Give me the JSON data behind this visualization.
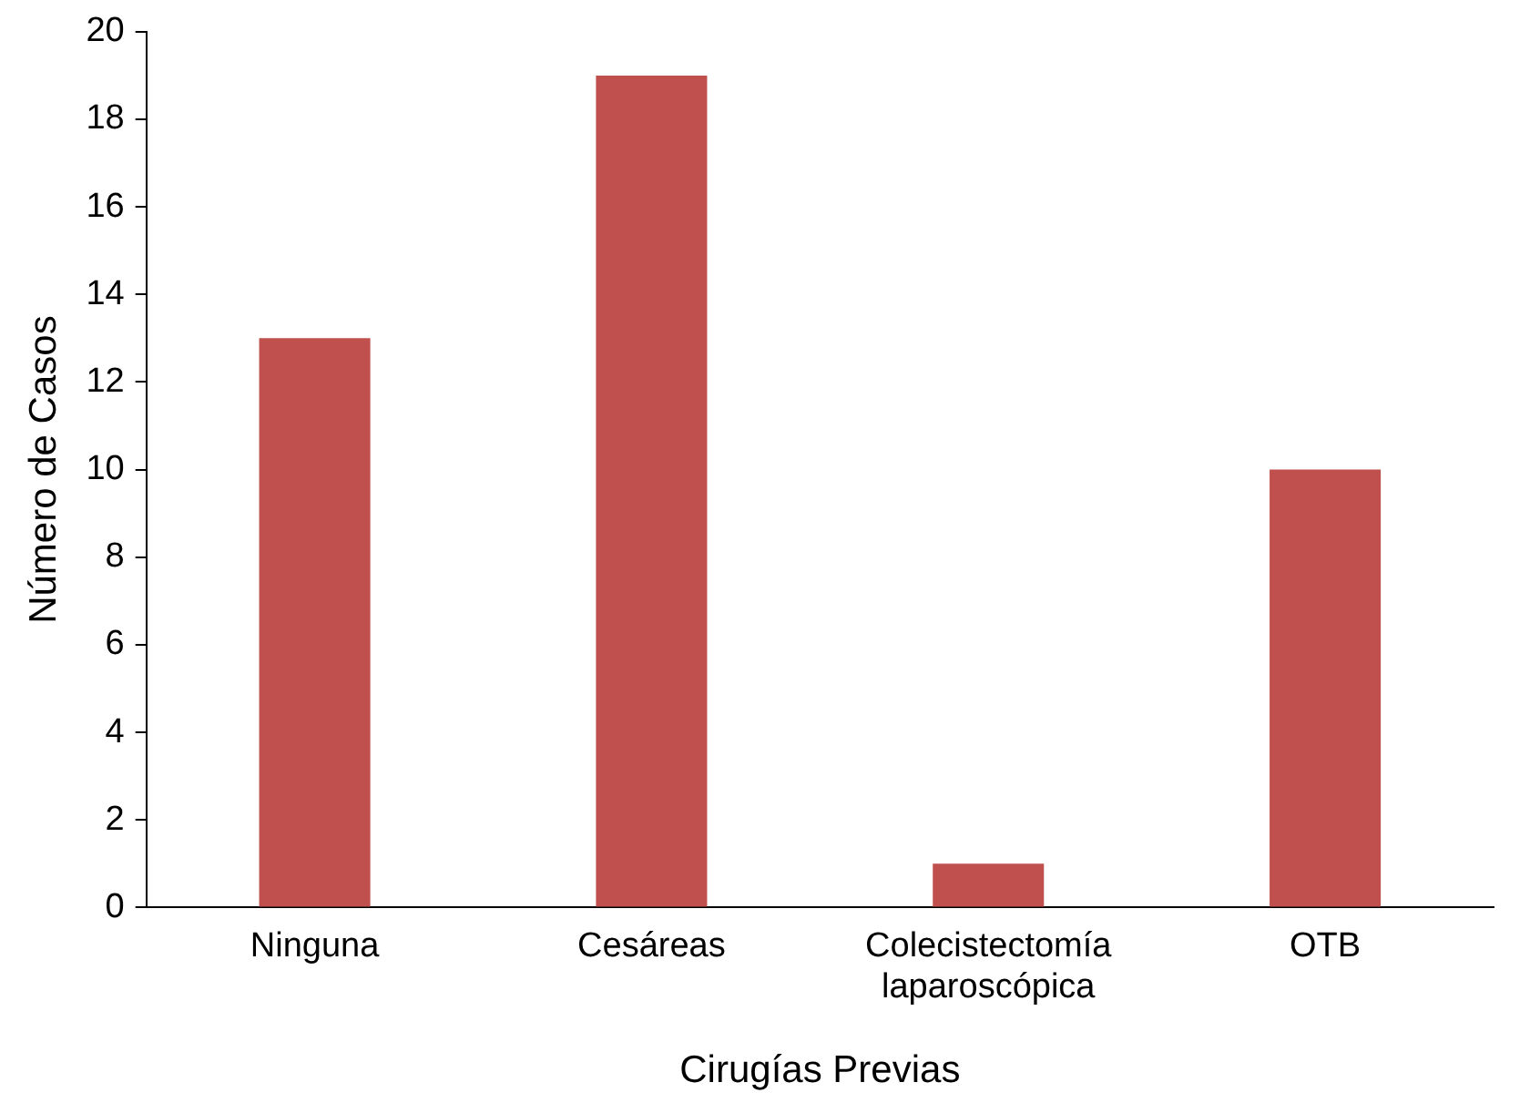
{
  "chart_data": {
    "type": "bar",
    "xlabel": "Cirugías Previas",
    "ylabel": "Número de Casos",
    "categories": [
      "Ninguna",
      "Cesáreas",
      "Colecistectomía laparoscópica",
      "OTB"
    ],
    "values": [
      13,
      19,
      1,
      10
    ],
    "color": "#c0504d",
    "ylim": [
      0,
      20
    ],
    "yticks": [
      0,
      2,
      4,
      6,
      8,
      10,
      12,
      14,
      16,
      18,
      20
    ]
  }
}
